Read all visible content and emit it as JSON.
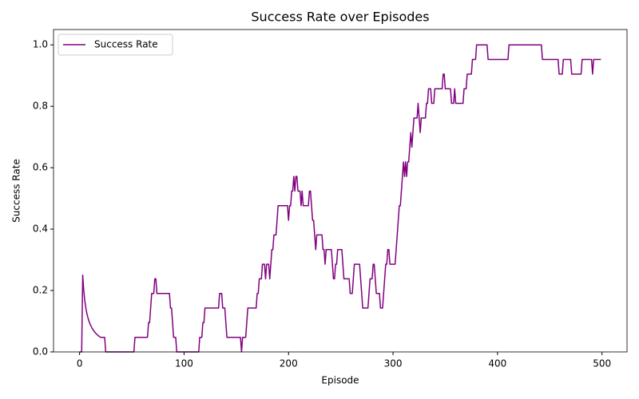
{
  "chart_data": {
    "type": "line",
    "title": "Success Rate over Episodes",
    "x_label": "Episode",
    "y_label": "Success Rate",
    "xlim": [
      -24.95,
      523.95
    ],
    "ylim": [
      0,
      1.05
    ],
    "xticks": [
      0,
      100,
      200,
      300,
      400,
      500
    ],
    "yticks": [
      {
        "value": 0,
        "label": "0.0"
      },
      {
        "value": 0.2,
        "label": "0.2"
      },
      {
        "value": 0.4,
        "label": "0.4"
      },
      {
        "value": 0.6,
        "label": "0.6"
      },
      {
        "value": 0.8,
        "label": "0.8"
      },
      {
        "value": 1,
        "label": "1.0"
      }
    ],
    "legend": "upper left",
    "series": [
      {
        "name": "Success Rate",
        "color": "#800080",
        "x": [
          0,
          2,
          3,
          4,
          5,
          6,
          7,
          8,
          9,
          10,
          12,
          14,
          16,
          18,
          20,
          24,
          25,
          52,
          53,
          65,
          66,
          67,
          68,
          69,
          71,
          72,
          73,
          74,
          86,
          87,
          88,
          89,
          90,
          92,
          93,
          114,
          115,
          117,
          118,
          119,
          120,
          133,
          134,
          136,
          137,
          139,
          140,
          141,
          154,
          155,
          156,
          159,
          160,
          161,
          169,
          170,
          171,
          172,
          174,
          175,
          177,
          178,
          179,
          181,
          182,
          183,
          184,
          185,
          186,
          188,
          189,
          190,
          199,
          200,
          201,
          202,
          203,
          204,
          205,
          206,
          207,
          208,
          209,
          211,
          212,
          213,
          214,
          219,
          220,
          221,
          222,
          223,
          224,
          225,
          226,
          227,
          232,
          233,
          234,
          235,
          236,
          241,
          242,
          243,
          244,
          245,
          246,
          247,
          251,
          252,
          253,
          258,
          259,
          261,
          262,
          263,
          268,
          269,
          270,
          271,
          276,
          277,
          278,
          280,
          281,
          282,
          283,
          284,
          287,
          288,
          290,
          291,
          292,
          293,
          294,
          295,
          296,
          297,
          302,
          303,
          304,
          305,
          306,
          307,
          308,
          309,
          310,
          311,
          312,
          313,
          314,
          315,
          316,
          317,
          318,
          319,
          320,
          323,
          324,
          325,
          326,
          327,
          331,
          332,
          333,
          334,
          336,
          337,
          339,
          340,
          347,
          348,
          349,
          350,
          355,
          356,
          358,
          359,
          360,
          367,
          368,
          370,
          371,
          375,
          376,
          379,
          380,
          390,
          391,
          410,
          411,
          442,
          443,
          458,
          459,
          462,
          463,
          470,
          471,
          480,
          481,
          490,
          491,
          492,
          493,
          499
        ],
        "values": [
          0,
          0,
          0.25,
          0.2,
          0.1667,
          0.1429,
          0.125,
          0.1111,
          0.1,
          0.0909,
          0.0769,
          0.0667,
          0.0588,
          0.0526,
          0.0476,
          0.0476,
          0,
          0,
          0.0476,
          0.0476,
          0.0952,
          0.0952,
          0.1429,
          0.1905,
          0.1905,
          0.2381,
          0.2381,
          0.1905,
          0.1905,
          0.1429,
          0.1429,
          0.0952,
          0.0476,
          0.0476,
          0,
          0,
          0.0476,
          0.0476,
          0.0952,
          0.0952,
          0.1429,
          0.1429,
          0.1905,
          0.1905,
          0.1429,
          0.1429,
          0.0952,
          0.0476,
          0.0476,
          0,
          0.0476,
          0.0476,
          0.0952,
          0.1429,
          0.1429,
          0.1905,
          0.1905,
          0.2381,
          0.2381,
          0.2857,
          0.2857,
          0.2381,
          0.2857,
          0.2857,
          0.2381,
          0.2857,
          0.3333,
          0.3333,
          0.381,
          0.381,
          0.4286,
          0.4762,
          0.4762,
          0.4286,
          0.4762,
          0.4762,
          0.5238,
          0.5238,
          0.5714,
          0.5238,
          0.5714,
          0.5714,
          0.5238,
          0.5238,
          0.4762,
          0.5238,
          0.4762,
          0.4762,
          0.5238,
          0.5238,
          0.4762,
          0.4286,
          0.4286,
          0.381,
          0.3333,
          0.381,
          0.381,
          0.3333,
          0.3333,
          0.2857,
          0.3333,
          0.3333,
          0.2857,
          0.2381,
          0.2381,
          0.2857,
          0.2857,
          0.3333,
          0.3333,
          0.2857,
          0.2381,
          0.2381,
          0.1905,
          0.1905,
          0.2381,
          0.2857,
          0.2857,
          0.2381,
          0.1905,
          0.1429,
          0.1429,
          0.1905,
          0.2381,
          0.2381,
          0.2857,
          0.2857,
          0.2381,
          0.1905,
          0.1905,
          0.1429,
          0.1429,
          0.1905,
          0.2381,
          0.2857,
          0.2857,
          0.3333,
          0.3333,
          0.2857,
          0.2857,
          0.3333,
          0.381,
          0.4286,
          0.4762,
          0.4762,
          0.5238,
          0.5714,
          0.619,
          0.5714,
          0.619,
          0.5714,
          0.619,
          0.619,
          0.6667,
          0.7143,
          0.6667,
          0.7143,
          0.7619,
          0.7619,
          0.8095,
          0.7619,
          0.7143,
          0.7619,
          0.7619,
          0.8095,
          0.8095,
          0.8571,
          0.8571,
          0.8095,
          0.8095,
          0.8571,
          0.8571,
          0.9048,
          0.9048,
          0.8571,
          0.8571,
          0.8095,
          0.8095,
          0.8571,
          0.8095,
          0.8095,
          0.8571,
          0.8571,
          0.9048,
          0.9048,
          0.9524,
          0.9524,
          1,
          1,
          0.9524,
          0.9524,
          1,
          1,
          0.9524,
          0.9524,
          0.9048,
          0.9048,
          0.9524,
          0.9524,
          0.9048,
          0.9048,
          0.9524,
          0.9524,
          0.9048,
          0.9524,
          0.9524,
          0.9524
        ]
      }
    ]
  }
}
